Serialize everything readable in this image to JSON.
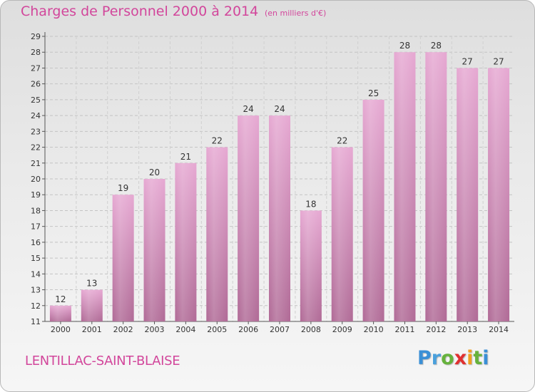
{
  "header": {
    "title": "Charges de Personnel 2000 à 2014",
    "subtitle": "(en milliers d'€)"
  },
  "footer": {
    "place": "LENTILLAC-SAINT-BLAISE",
    "logo": "Proxiti"
  },
  "colors": {
    "bar_top": "#e6a8d2",
    "bar_bottom": "#b06a96",
    "accent": "#d2469b"
  },
  "chart_data": {
    "type": "bar",
    "title": "Charges de Personnel 2000 à 2014",
    "subtitle": "(en milliers d'€)",
    "categories": [
      "2000",
      "2001",
      "2002",
      "2003",
      "2004",
      "2005",
      "2006",
      "2007",
      "2008",
      "2009",
      "2010",
      "2011",
      "2012",
      "2013",
      "2014"
    ],
    "values": [
      12,
      13,
      19,
      20,
      21,
      22,
      24,
      24,
      18,
      22,
      25,
      28,
      28,
      27,
      27
    ],
    "ylim": [
      11,
      29
    ],
    "yticks": [
      11,
      12,
      13,
      14,
      15,
      16,
      17,
      18,
      19,
      20,
      21,
      22,
      23,
      24,
      25,
      26,
      27,
      28,
      29
    ],
    "grid": true,
    "legend": "none"
  }
}
